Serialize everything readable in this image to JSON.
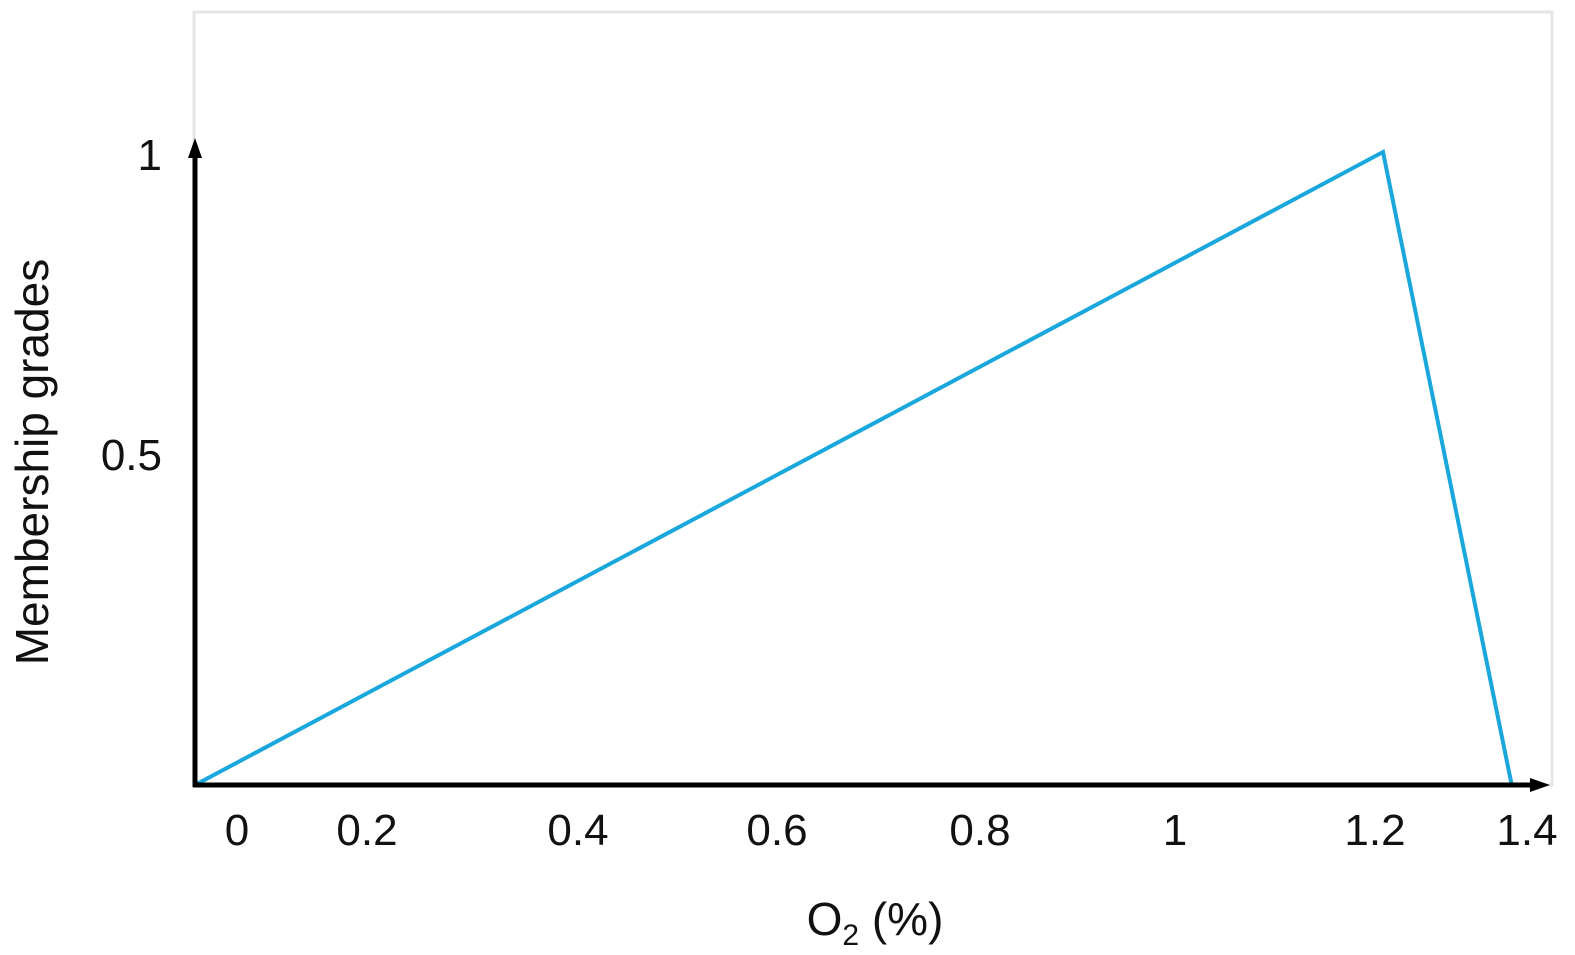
{
  "chart_data": {
    "type": "line",
    "title": "",
    "xlabel": "O",
    "xlabel_subscript": "2",
    "xlabel_suffix": " (%)",
    "ylabel": "Membership grades",
    "x_ticks": [
      "0",
      "0.2",
      "0.4",
      "0.6",
      "0.8",
      "1",
      "1.2",
      "1.4"
    ],
    "y_ticks": [
      "0.5",
      "1"
    ],
    "xlim": [
      0,
      1.4
    ],
    "ylim": [
      0,
      1
    ],
    "grid": false,
    "series": [
      {
        "x": [
          0,
          1.2,
          1.33
        ],
        "y": [
          0,
          1,
          0
        ],
        "color": "#1aa7dc"
      }
    ]
  }
}
